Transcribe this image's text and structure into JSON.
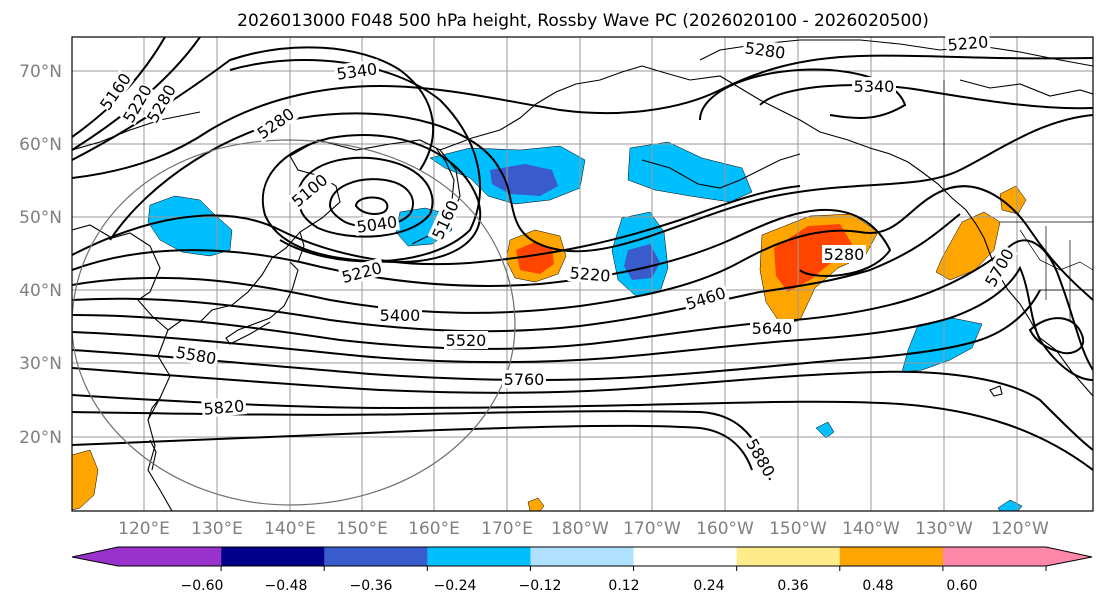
{
  "title": "2026013000 F048 500 hPa height, Rossby Wave PC (2026020100 - 2026020500)",
  "lat_labels": [
    "70°N",
    "60°N",
    "50°N",
    "40°N",
    "30°N",
    "20°N"
  ],
  "lon_labels": [
    "120°E",
    "130°E",
    "140°E",
    "150°E",
    "160°E",
    "170°E",
    "180°W",
    "170°W",
    "160°W",
    "150°W",
    "140°W",
    "130°W",
    "120°W"
  ],
  "contour_labels": [
    "5160",
    "5220",
    "5280",
    "5340",
    "5280",
    "5220",
    "5280",
    "5340",
    "5100",
    "5040",
    "5160",
    "5220",
    "5220",
    "5280",
    "5400",
    "5460",
    "5520",
    "5580",
    "5640",
    "5700",
    "5760",
    "5820",
    "5880"
  ],
  "colorbar": {
    "ticks": [
      "−0.60",
      "−0.48",
      "−0.36",
      "−0.24",
      "−0.12",
      "0.12",
      "0.24",
      "0.36",
      "0.48",
      "0.60"
    ],
    "colors": [
      "#9932CC",
      "#00008B",
      "#3A5BCC",
      "#00BFFF",
      "#B0E2FF",
      "#FFFFFF",
      "#FFEB8A",
      "#FFA500",
      "#FF4500",
      "#B22222",
      "#FF88AA"
    ]
  },
  "colors": {
    "pos_orange": "#FFA500",
    "pos_red": "#FF4500",
    "neg_cyan": "#00BFFF",
    "neg_blue": "#3A5BCC",
    "grid": "#9a9a9a",
    "label": "#808080"
  }
}
